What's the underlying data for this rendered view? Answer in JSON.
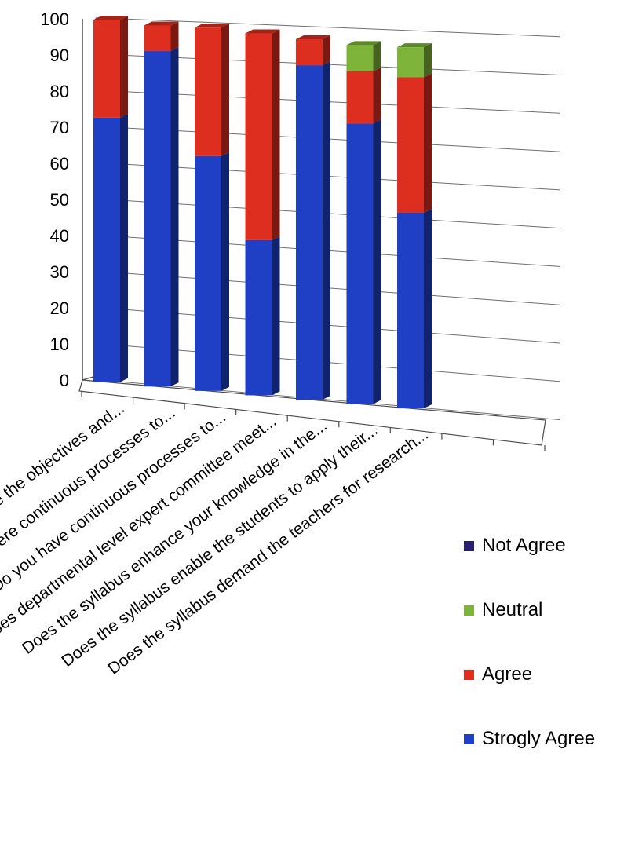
{
  "chart_data": {
    "type": "bar",
    "stacked": true,
    "three_d": true,
    "categories": [
      "Are the objectives and...",
      "Is there continuous processes to...",
      "Do you have continuous processes to...",
      "Does departmental level expert committee meet...",
      "Does the syllabus enhance your knowledge in the...",
      "Does the syllabus enable the students to apply their...",
      "Does the syllabus demand the teachers for research..."
    ],
    "series": [
      {
        "name": "Strogly Agree",
        "color": "#1f3fc4",
        "values": [
          73,
          92,
          64,
          42,
          90,
          75,
          52
        ]
      },
      {
        "name": "Agree",
        "color": "#dd2e20",
        "values": [
          27,
          7,
          35,
          56,
          7,
          14,
          36
        ]
      },
      {
        "name": "Neutral",
        "color": "#7fb43a",
        "values": [
          0,
          0,
          0,
          0,
          0,
          7,
          8
        ]
      },
      {
        "name": "Not Agree",
        "color": "#2a1f6e",
        "values": [
          0,
          0,
          0,
          0,
          0,
          0,
          0
        ]
      }
    ],
    "legend_order": [
      "Not Agree",
      "Neutral",
      "Agree",
      "Strogly Agree"
    ],
    "legend_position": "right",
    "y_ticks": [
      "0",
      "10",
      "20",
      "30",
      "40",
      "50",
      "60",
      "70",
      "80",
      "90",
      "100"
    ],
    "ylim": [
      0,
      100
    ],
    "grid": true
  }
}
